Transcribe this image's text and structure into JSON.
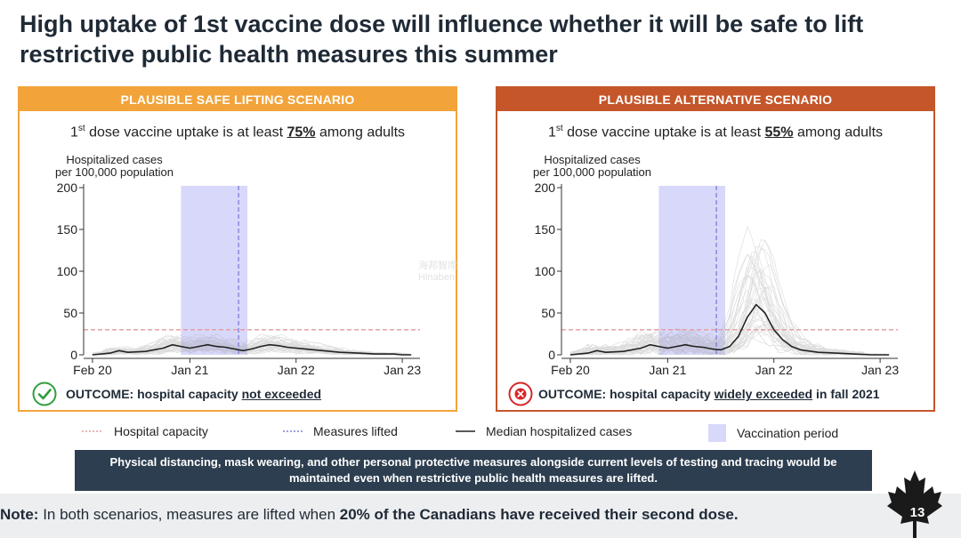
{
  "title": "High uptake of 1st vaccine dose will influence whether it will be safe to lift restrictive public health measures this summer",
  "panels": [
    {
      "header": "PLAUSIBLE SAFE LIFTING SCENARIO",
      "uptake_prefix": "dose vaccine uptake is at least",
      "uptake_ordinal_num": "1",
      "uptake_ordinal_sup": "st",
      "uptake_pct": "75%",
      "uptake_suffix": "among adults",
      "ylabel_line1": "Hospitalized cases",
      "ylabel_line2": "per 100,000 population",
      "outcome_prefix": "OUTCOME: hospital capacity",
      "outcome_emph": "not exceeded",
      "outcome_suffix": "",
      "outcome_status": "ok",
      "header_color": "#f2a33a"
    },
    {
      "header": "PLAUSIBLE ALTERNATIVE SCENARIO",
      "uptake_prefix": "dose vaccine uptake is at least",
      "uptake_ordinal_num": "1",
      "uptake_ordinal_sup": "st",
      "uptake_pct": "55%",
      "uptake_suffix": "among adults",
      "ylabel_line1": "Hospitalized cases",
      "ylabel_line2": "per 100,000 population",
      "outcome_prefix": "OUTCOME: hospital capacity",
      "outcome_emph": "widely exceeded",
      "outcome_suffix": "in fall 2021",
      "outcome_status": "bad",
      "header_color": "#c4562a"
    }
  ],
  "legend": {
    "capacity": "Hospital capacity",
    "lifted": "Measures lifted",
    "median": "Median hospitalized cases",
    "vaccination": "Vaccination period"
  },
  "banner": "Physical distancing, mask wearing, and other personal protective measures alongside current levels of testing and tracing would be maintained even when restrictive public health measures are lifted.",
  "note": {
    "label": "Note:",
    "text": "In both scenarios, measures are lifted when",
    "emph": "20% of the Canadians have received their second dose."
  },
  "page_number": "13",
  "watermark": {
    "line1": "海邦智库",
    "line2": "Hinaben"
  },
  "colors": {
    "capacity_line": "#e39a9a",
    "lifted_line": "#7d7fd6",
    "vaccination_band": "#d8d8fa",
    "median_line": "#222222",
    "ok_icon": "#2e9e3e",
    "bad_icon": "#d8262a"
  },
  "chart_data": [
    {
      "type": "line",
      "title": "",
      "xlabel": "",
      "ylabel": "Hospitalized cases per 100,000 population",
      "x_ticks": [
        "Feb 20",
        "Jan 21",
        "Jan 22",
        "Jan 23"
      ],
      "x_tick_months": [
        0,
        11,
        23,
        35
      ],
      "xlim_months": [
        -1,
        37
      ],
      "y_ticks": [
        0,
        50,
        100,
        150,
        200
      ],
      "ylim": [
        0,
        200
      ],
      "hospital_capacity": 30,
      "vaccination_period_months": [
        10,
        17.5
      ],
      "measures_lifted_month": 16.5,
      "series": [
        {
          "name": "Median hospitalized cases",
          "x_months": [
            0,
            2,
            3,
            4,
            6,
            8,
            9,
            10,
            11,
            12,
            13,
            14,
            15,
            16,
            17,
            18,
            19,
            20,
            21,
            22,
            24,
            26,
            28,
            30,
            32,
            34,
            35,
            36
          ],
          "values": [
            0,
            2,
            5,
            3,
            4,
            8,
            12,
            10,
            8,
            10,
            12,
            10,
            9,
            7,
            5,
            7,
            10,
            12,
            11,
            9,
            7,
            5,
            3,
            2,
            1,
            1,
            0,
            0
          ]
        }
      ],
      "ensemble_spread": "faint grey simulation trajectories around the median (roughly up to ~30)"
    },
    {
      "type": "line",
      "title": "",
      "xlabel": "",
      "ylabel": "Hospitalized cases per 100,000 population",
      "x_ticks": [
        "Feb 20",
        "Jan 21",
        "Jan 22",
        "Jan 23"
      ],
      "x_tick_months": [
        0,
        11,
        23,
        35
      ],
      "xlim_months": [
        -1,
        37
      ],
      "y_ticks": [
        0,
        50,
        100,
        150,
        200
      ],
      "ylim": [
        0,
        200
      ],
      "hospital_capacity": 30,
      "vaccination_period_months": [
        10,
        17.5
      ],
      "measures_lifted_month": 16.5,
      "series": [
        {
          "name": "Median hospitalized cases",
          "x_months": [
            0,
            2,
            3,
            4,
            6,
            8,
            9,
            10,
            11,
            12,
            13,
            14,
            15,
            16,
            17,
            18,
            19,
            20,
            21,
            22,
            23,
            24,
            25,
            26,
            28,
            30,
            32,
            34,
            36
          ],
          "values": [
            0,
            2,
            5,
            3,
            4,
            8,
            12,
            10,
            8,
            10,
            12,
            10,
            9,
            7,
            6,
            10,
            22,
            45,
            60,
            50,
            30,
            18,
            10,
            6,
            3,
            2,
            1,
            0,
            0
          ]
        }
      ],
      "ensemble_spread": "faint grey simulation trajectories, peak spread up to ~160 near Jan 22"
    }
  ]
}
